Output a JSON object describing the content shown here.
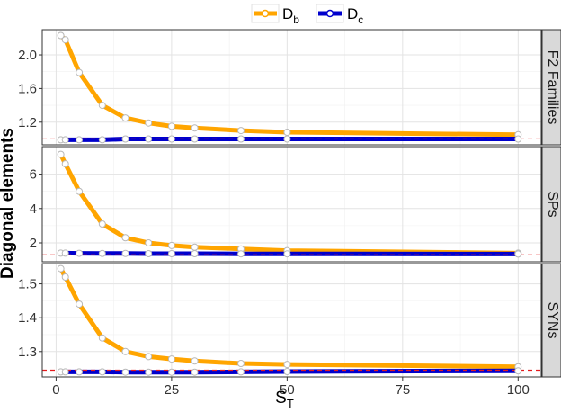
{
  "chart_data": {
    "type": "line",
    "ylabel": "Diagonal elements",
    "xlabel_main": "S",
    "xlabel_sub": "T",
    "x": [
      1,
      2,
      5,
      10,
      15,
      20,
      25,
      30,
      40,
      50,
      100
    ],
    "xlim": [
      -3,
      105
    ],
    "xticks": [
      0,
      25,
      50,
      75,
      100
    ],
    "legend": {
      "position": "top",
      "entries": [
        {
          "main": "D",
          "sub": "b",
          "color": "#FFA500"
        },
        {
          "main": "D",
          "sub": "c",
          "color": "#0000CD"
        }
      ]
    },
    "reference_line_color": "#E41A1C",
    "panels": [
      {
        "strip": "F2 Families",
        "ylim": [
          0.93,
          2.3
        ],
        "yticks": [
          1.2,
          1.6,
          2.0
        ],
        "ytick_labels": [
          "1.2",
          "1.6",
          "2.0"
        ],
        "reference_y": 1.0,
        "series": [
          {
            "name": "Db",
            "values": [
              2.23,
              2.18,
              1.79,
              1.4,
              1.25,
              1.19,
              1.15,
              1.13,
              1.1,
              1.08,
              1.05
            ]
          },
          {
            "name": "Dc",
            "values": [
              0.99,
              0.99,
              0.99,
              0.99,
              1.0,
              1.0,
              1.0,
              1.0,
              1.0,
              1.0,
              1.0
            ]
          }
        ]
      },
      {
        "strip": "SPs",
        "ylim": [
          0.9,
          7.6
        ],
        "yticks": [
          2,
          4,
          6
        ],
        "ytick_labels": [
          "2",
          "4",
          "6"
        ],
        "reference_y": 1.3,
        "series": [
          {
            "name": "Db",
            "values": [
              7.15,
              6.6,
              5.0,
              3.1,
              2.3,
              2.0,
              1.85,
              1.75,
              1.65,
              1.55,
              1.4
            ]
          },
          {
            "name": "Dc",
            "values": [
              1.4,
              1.4,
              1.39,
              1.38,
              1.38,
              1.37,
              1.37,
              1.37,
              1.36,
              1.36,
              1.35
            ]
          }
        ]
      },
      {
        "strip": "SYNs",
        "ylim": [
          1.225,
          1.56
        ],
        "yticks": [
          1.3,
          1.4,
          1.5
        ],
        "ytick_labels": [
          "1.3",
          "1.4",
          "1.5"
        ],
        "reference_y": 1.245,
        "series": [
          {
            "name": "Db",
            "values": [
              1.545,
              1.52,
              1.44,
              1.34,
              1.3,
              1.285,
              1.278,
              1.272,
              1.265,
              1.262,
              1.255
            ]
          },
          {
            "name": "Dc",
            "values": [
              1.24,
              1.24,
              1.24,
              1.24,
              1.239,
              1.239,
              1.239,
              1.239,
              1.24,
              1.241,
              1.243
            ]
          }
        ]
      }
    ]
  }
}
